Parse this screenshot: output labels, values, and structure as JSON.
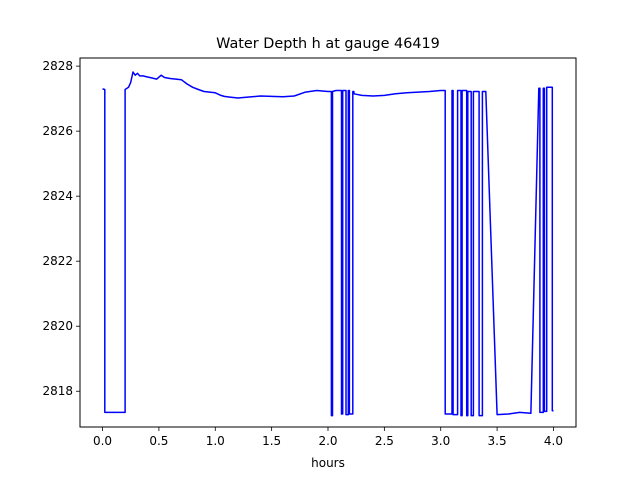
{
  "chart_data": {
    "type": "line",
    "title": "Water Depth h at gauge 46419",
    "xlabel": "hours",
    "ylabel": "",
    "xlim": [
      -0.2,
      4.2
    ],
    "ylim": [
      2816.9,
      2828.25
    ],
    "xticks": [
      0.0,
      0.5,
      1.0,
      1.5,
      2.0,
      2.5,
      3.0,
      3.5,
      4.0
    ],
    "xtick_labels": [
      "0.0",
      "0.5",
      "1.0",
      "1.5",
      "2.0",
      "2.5",
      "3.0",
      "3.5",
      "4.0"
    ],
    "yticks": [
      2818,
      2820,
      2822,
      2824,
      2826,
      2828
    ],
    "ytick_labels": [
      "2818",
      "2820",
      "2822",
      "2824",
      "2826",
      "2828"
    ],
    "grid": false,
    "series": [
      {
        "color": "#0000ff",
        "x": [
          0.0,
          0.02,
          0.02,
          0.2,
          0.2,
          0.23,
          0.25,
          0.27,
          0.29,
          0.31,
          0.33,
          0.36,
          0.38,
          0.42,
          0.48,
          0.52,
          0.55,
          0.6,
          0.65,
          0.7,
          0.75,
          0.8,
          0.85,
          0.9,
          0.95,
          1.0,
          1.05,
          1.08,
          1.12,
          1.2,
          1.3,
          1.4,
          1.5,
          1.6,
          1.7,
          1.8,
          1.9,
          2.0,
          2.03,
          2.03,
          2.04,
          2.04,
          2.07,
          2.1,
          2.12,
          2.12,
          2.13,
          2.13,
          2.16,
          2.16,
          2.18,
          2.18,
          2.19,
          2.19,
          2.22,
          2.22,
          2.23,
          2.23,
          2.3,
          2.4,
          2.5,
          2.6,
          2.7,
          2.8,
          2.9,
          3.0,
          3.04,
          3.04,
          3.1,
          3.1,
          3.11,
          3.11,
          3.15,
          3.15,
          3.18,
          3.18,
          3.19,
          3.19,
          3.23,
          3.23,
          3.24,
          3.24,
          3.27,
          3.27,
          3.29,
          3.29,
          3.34,
          3.34,
          3.37,
          3.37,
          3.4,
          3.5,
          3.6,
          3.7,
          3.8,
          3.8,
          3.87,
          3.87,
          3.88,
          3.88,
          3.91,
          3.91,
          3.92,
          3.92,
          3.94,
          3.94,
          3.99,
          3.99,
          4.0
        ],
        "y": [
          2827.3,
          2827.28,
          2817.35,
          2817.35,
          2827.28,
          2827.35,
          2827.5,
          2827.82,
          2827.72,
          2827.78,
          2827.7,
          2827.7,
          2827.68,
          2827.65,
          2827.6,
          2827.72,
          2827.65,
          2827.62,
          2827.6,
          2827.58,
          2827.45,
          2827.35,
          2827.28,
          2827.22,
          2827.2,
          2827.18,
          2827.1,
          2827.07,
          2827.05,
          2827.02,
          2827.05,
          2827.08,
          2827.07,
          2827.06,
          2827.08,
          2827.2,
          2827.25,
          2827.22,
          2827.22,
          2817.25,
          2817.25,
          2827.22,
          2827.25,
          2827.25,
          2827.25,
          2817.3,
          2817.3,
          2827.25,
          2827.25,
          2817.28,
          2817.28,
          2827.25,
          2827.25,
          2817.3,
          2817.3,
          2827.22,
          2827.22,
          2827.15,
          2827.1,
          2827.08,
          2827.1,
          2827.15,
          2827.18,
          2827.2,
          2827.22,
          2827.25,
          2827.25,
          2817.3,
          2817.3,
          2827.25,
          2827.25,
          2817.28,
          2817.28,
          2827.25,
          2827.25,
          2817.25,
          2817.25,
          2827.25,
          2827.25,
          2817.25,
          2817.25,
          2827.22,
          2827.22,
          2817.25,
          2817.25,
          2827.22,
          2827.22,
          2817.25,
          2817.25,
          2827.22,
          2827.22,
          2817.28,
          2817.3,
          2817.35,
          2817.32,
          2817.35,
          2827.3,
          2827.32,
          2827.32,
          2817.35,
          2817.35,
          2827.32,
          2827.32,
          2817.38,
          2817.38,
          2827.35,
          2827.35,
          2817.4,
          2817.4
        ]
      }
    ]
  }
}
